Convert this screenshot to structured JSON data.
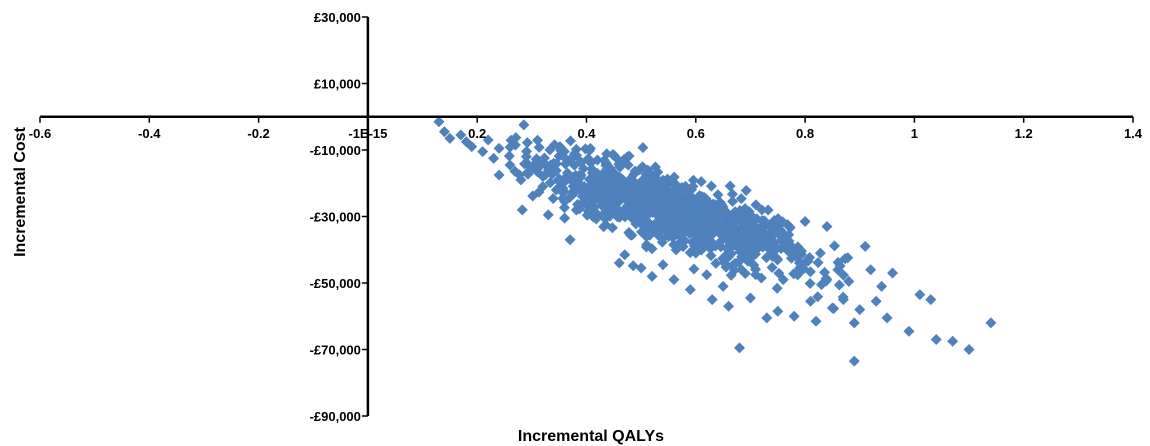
{
  "chart_data": {
    "type": "scatter",
    "title": "",
    "xlabel": "Incremental QALYs",
    "ylabel": "Incremental Cost",
    "xlim": [
      -0.6,
      1.4
    ],
    "ylim": [
      -90000,
      30000
    ],
    "x_ticks": [
      -0.6,
      -0.4,
      -0.2,
      0,
      0.2,
      0.4,
      0.6,
      0.8,
      1,
      1.2,
      1.4
    ],
    "x_tick_labels": [
      "-0.6",
      "-0.4",
      "-0.2",
      "-1E-15",
      "0.2",
      "0.4",
      "0.6",
      "0.8",
      "1",
      "1.2",
      "1.4"
    ],
    "y_ticks": [
      30000,
      10000,
      -10000,
      -30000,
      -50000,
      -70000,
      -90000
    ],
    "y_tick_labels": [
      "£30,000",
      "£10,000",
      "-£10,000",
      "-£30,000",
      "-£50,000",
      "-£70,000",
      "-£90,000"
    ],
    "marker": "diamond",
    "marker_color": "#4f81bd",
    "grid": false,
    "legend": "none",
    "series": [
      {
        "points": [
          [
            0.13,
            -1500
          ],
          [
            0.14,
            -4500
          ],
          [
            0.15,
            -6500
          ],
          [
            0.17,
            -5500
          ],
          [
            0.18,
            -7500
          ],
          [
            0.19,
            -9000
          ],
          [
            0.21,
            -10500
          ],
          [
            0.22,
            -7000
          ],
          [
            0.23,
            -12500
          ],
          [
            0.24,
            -9500
          ],
          [
            0.24,
            -17500
          ],
          [
            0.26,
            -14500
          ],
          [
            0.27,
            -8500
          ],
          [
            0.28,
            -19000
          ],
          [
            0.29,
            -12000
          ],
          [
            0.31,
            -16500
          ],
          [
            0.32,
            -21000
          ],
          [
            0.33,
            -29500
          ],
          [
            0.34,
            -14000
          ],
          [
            0.35,
            -19500
          ],
          [
            0.36,
            -25500
          ],
          [
            0.36,
            -30500
          ],
          [
            0.37,
            -37000
          ],
          [
            0.38,
            -22500
          ],
          [
            0.39,
            -17500
          ],
          [
            0.41,
            -27500
          ],
          [
            0.42,
            -13000
          ],
          [
            0.43,
            -30000
          ],
          [
            0.45,
            -11500
          ],
          [
            0.46,
            -44000
          ],
          [
            0.47,
            -41500
          ],
          [
            0.48,
            -35500
          ],
          [
            0.49,
            -26000
          ],
          [
            0.5,
            -45500
          ],
          [
            0.51,
            -38500
          ],
          [
            0.52,
            -48000
          ],
          [
            0.53,
            -31500
          ],
          [
            0.54,
            -44500
          ],
          [
            0.55,
            -36000
          ],
          [
            0.56,
            -49000
          ],
          [
            0.58,
            -28500
          ],
          [
            0.59,
            -52000
          ],
          [
            0.6,
            -41000
          ],
          [
            0.61,
            -19500
          ],
          [
            0.62,
            -47500
          ],
          [
            0.63,
            -55000
          ],
          [
            0.64,
            -33500
          ],
          [
            0.65,
            -51000
          ],
          [
            0.66,
            -57000
          ],
          [
            0.67,
            -44500
          ],
          [
            0.68,
            -69500
          ],
          [
            0.69,
            -38000
          ],
          [
            0.7,
            -54500
          ],
          [
            0.71,
            -26500
          ],
          [
            0.72,
            -48500
          ],
          [
            0.73,
            -60500
          ],
          [
            0.74,
            -42000
          ],
          [
            0.75,
            -58500
          ],
          [
            0.76,
            -49000
          ],
          [
            0.77,
            -35500
          ],
          [
            0.78,
            -60000
          ],
          [
            0.79,
            -45500
          ],
          [
            0.8,
            -31500
          ],
          [
            0.81,
            -55500
          ],
          [
            0.82,
            -61500
          ],
          [
            0.83,
            -50500
          ],
          [
            0.84,
            -33000
          ],
          [
            0.85,
            -57500
          ],
          [
            0.86,
            -46000
          ],
          [
            0.87,
            -55000
          ],
          [
            0.88,
            -49500
          ],
          [
            0.89,
            -62000
          ],
          [
            0.89,
            -73500
          ],
          [
            0.9,
            -58000
          ],
          [
            0.91,
            -39000
          ],
          [
            0.92,
            -46000
          ],
          [
            0.93,
            -55500
          ],
          [
            0.94,
            -51000
          ],
          [
            0.95,
            -60500
          ],
          [
            0.96,
            -47000
          ],
          [
            0.99,
            -64500
          ],
          [
            1.01,
            -53500
          ],
          [
            1.03,
            -55000
          ],
          [
            1.04,
            -67000
          ],
          [
            1.07,
            -67500
          ],
          [
            1.1,
            -70000
          ],
          [
            1.14,
            -62000
          ]
        ]
      }
    ],
    "density_cloud": {
      "x_range": [
        0.25,
        0.88
      ],
      "slope": -55000,
      "intercept": 2000,
      "spread": 5000,
      "count": 1000
    }
  }
}
